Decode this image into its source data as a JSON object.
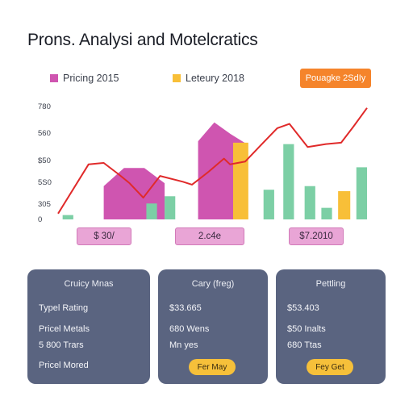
{
  "title": "Prons. Analysi and Motelcratics",
  "legend": [
    {
      "label": "Pricing 2015",
      "color": "#cf55b0"
    },
    {
      "label": "Leteury 2018",
      "color": "#f8bf38"
    }
  ],
  "badge": "Pouagke 2SdIy",
  "value_labels": [
    "$ 30/",
    "2.c4e",
    "$7.2010"
  ],
  "cards": [
    {
      "title": "Cruicy Mnas",
      "rows": [
        "Typel Rating",
        "Pricel Metals",
        "5 800 Trars",
        "Pricel Mored"
      ],
      "button": null
    },
    {
      "title": "Cary (freg)",
      "rows": [
        "$33.665",
        "680 Wens",
        "Mn yes"
      ],
      "button": "Fer May"
    },
    {
      "title": "Pettling",
      "rows": [
        "$53.403",
        "$50 Inalts",
        "680 Ttas"
      ],
      "button": "Fey Get"
    }
  ],
  "chart_data": {
    "type": "bar",
    "title": "Prons. Analysi and Motelcratics",
    "y_ticks": [
      "780",
      "560",
      "$50",
      "5S0",
      "305",
      "0"
    ],
    "ylim": [
      0,
      780
    ],
    "grid": false,
    "legend_placement": "top",
    "series": [
      {
        "name": "Pricing 2015",
        "color": "#cf55b0",
        "bars": [
          {
            "x": 3.0,
            "y": [
              230,
              355,
              355,
              250
            ],
            "width": 4.0
          },
          {
            "x": 9.2,
            "y": [
              540,
              670,
              590,
              520
            ],
            "width": 3.2
          }
        ]
      },
      {
        "name": "Leteury 2018",
        "color": "#f8bf38",
        "bars": [
          {
            "x": 11.5,
            "y": 530,
            "width": 1.0
          },
          {
            "x": 18.4,
            "y": 195,
            "width": 0.8
          }
        ]
      },
      {
        "name": "",
        "color": "#7ccfa5",
        "bars": [
          {
            "x": 0.3,
            "y": 30,
            "width": 0.7
          },
          {
            "x": 5.8,
            "y": 110,
            "width": 0.7
          },
          {
            "x": 7.0,
            "y": 160,
            "width": 0.7
          },
          {
            "x": 13.5,
            "y": 205,
            "width": 0.7
          },
          {
            "x": 14.8,
            "y": 520,
            "width": 0.7
          },
          {
            "x": 16.2,
            "y": 230,
            "width": 0.7
          },
          {
            "x": 17.3,
            "y": 80,
            "width": 0.7
          },
          {
            "x": 19.6,
            "y": 360,
            "width": 0.7
          }
        ]
      }
    ],
    "line": {
      "color": "#e02a2a",
      "x": [
        0,
        2,
        3,
        4,
        4.7,
        5.6,
        6.7,
        8.2,
        8.8,
        9.9,
        10.9,
        11.3,
        12.3,
        13.3,
        14.4,
        15.2,
        16.4,
        17.6,
        18.6,
        19.4,
        20.3
      ],
      "y": [
        40,
        380,
        390,
        310,
        250,
        150,
        300,
        260,
        240,
        330,
        420,
        380,
        400,
        510,
        630,
        660,
        500,
        520,
        530,
        640,
        770
      ]
    }
  }
}
